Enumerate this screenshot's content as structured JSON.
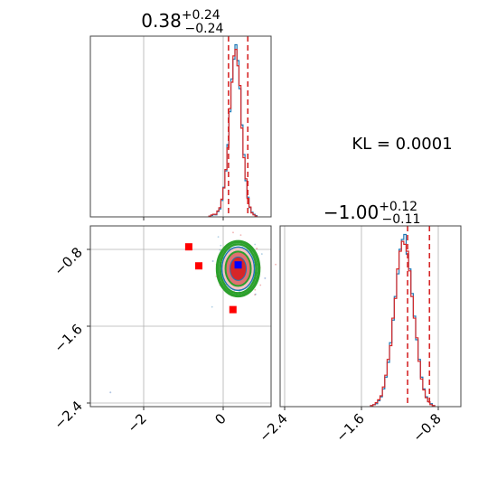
{
  "chart_data": {
    "type": "corner",
    "panels": [
      {
        "id": "marginal-param1",
        "type": "histogram",
        "title": {
          "median": "0.38",
          "plus": "+0.24",
          "minus": "−0.24"
        },
        "xlim": [
          -3.3,
          1.2
        ],
        "quantile_lines": [
          0.14,
          0.62
        ],
        "grid": true,
        "series": [
          {
            "color": "#1f77b4",
            "bin_start": -0.35,
            "bin_width": 0.05,
            "counts": [
              1,
              2,
              4,
              3,
              8,
              12,
              25,
              45,
              70,
              110,
              160,
              210,
              240,
              262,
              238,
              195,
              140,
              95,
              55,
              30,
              14,
              7,
              4,
              2
            ]
          },
          {
            "color": "#d62728",
            "bin_start": -0.35,
            "bin_width": 0.05,
            "counts": [
              1,
              3,
              4,
              4,
              9,
              14,
              27,
              44,
              72,
              105,
              165,
              205,
              245,
              255,
              230,
              200,
              135,
              90,
              58,
              28,
              15,
              6,
              3,
              1
            ]
          }
        ]
      },
      {
        "id": "joint-param1-param2",
        "type": "scatter-contour",
        "xlim": [
          -3.3,
          1.2
        ],
        "ylim": [
          -2.45,
          -0.55
        ],
        "xticks": [
          -2,
          0
        ],
        "xtick_labels": [
          "−2",
          "0"
        ],
        "yticks": [
          -0.8,
          -1.6,
          -2.4
        ],
        "ytick_labels": [
          "−0.8",
          "−1.6",
          "−2.4"
        ],
        "grid": true,
        "density_center": [
          0.38,
          -1.0
        ],
        "contour_colors": [
          "#2ca02c",
          "#1f77b4",
          "#e07070",
          "#d62728"
        ],
        "red_markers": [
          [
            -0.85,
            -0.77
          ],
          [
            -0.6,
            -0.97
          ],
          [
            0.25,
            -1.43
          ]
        ],
        "blue_marker": [
          0.38,
          -0.96
        ],
        "outlier_points": [
          [
            -2.8,
            -2.3
          ],
          [
            -0.25,
            -0.92
          ],
          [
            1.05,
            -1.1
          ]
        ]
      },
      {
        "id": "marginal-param2",
        "type": "histogram",
        "title": {
          "median": "−1.00",
          "plus": "+0.12",
          "minus": "−0.11"
        },
        "xlim": [
          -2.45,
          -0.55
        ],
        "xticks": [
          -2.4,
          -1.6,
          -0.8
        ],
        "xtick_labels": [
          "−2.4",
          "−1.6",
          "−0.8"
        ],
        "quantile_lines": [
          -1.11,
          -0.88
        ],
        "grid": true,
        "series": [
          {
            "color": "#1f77b4",
            "bin_start": -1.5,
            "bin_width": 0.025,
            "counts": [
              1,
              2,
              3,
              6,
              10,
              18,
              30,
              45,
              65,
              88,
              112,
              135,
              160,
              170,
              175,
              155,
              140,
              115,
              92,
              68,
              48,
              30,
              18,
              10,
              5,
              3,
              1
            ]
          },
          {
            "color": "#d62728",
            "bin_start": -1.5,
            "bin_width": 0.025,
            "counts": [
              1,
              2,
              4,
              7,
              11,
              20,
              32,
              48,
              62,
              90,
              110,
              140,
              158,
              168,
              165,
              158,
              138,
              112,
              90,
              70,
              46,
              28,
              17,
              9,
              5,
              2,
              1
            ]
          }
        ]
      }
    ],
    "annotation": "KL = 0.0001",
    "colors": {
      "hist_blue": "#1f77b4",
      "hist_red": "#d62728",
      "quantile": "#d62728",
      "contour_green": "#2ca02c"
    }
  }
}
